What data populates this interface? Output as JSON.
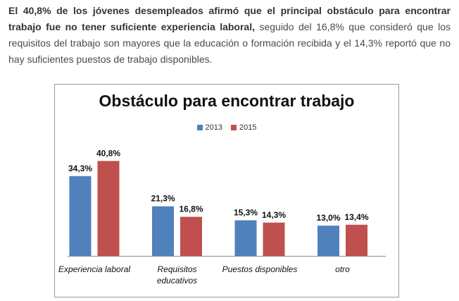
{
  "intro": {
    "bold": "El 40,8% de los jóvenes desempleados afirmó que el principal obstáculo para encontrar trabajo fue no tener suficiente experiencia laboral,",
    "rest": " seguido del 16,8% que consideró que los requisitos del trabajo son mayores que la educación o formación recibida y el 14,3% reportó que no hay suficientes puestos de trabajo disponibles."
  },
  "chart_data": {
    "type": "bar",
    "title": "Obstáculo para encontrar trabajo",
    "categories": [
      [
        "Experiencia laboral"
      ],
      [
        "Requisitos",
        "educativos"
      ],
      [
        "Puestos disponibles"
      ],
      [
        "otro"
      ]
    ],
    "series": [
      {
        "name": "2013",
        "color": "#4f81bd",
        "values": [
          34.3,
          21.3,
          15.3,
          13.0
        ],
        "labels": [
          "34,3%",
          "21,3%",
          "15,3%",
          "13,0%"
        ]
      },
      {
        "name": "2015",
        "color": "#c0504d",
        "values": [
          40.8,
          16.8,
          14.3,
          13.4
        ],
        "labels": [
          "40,8%",
          "16,8%",
          "14,3%",
          "13,4%"
        ]
      }
    ],
    "ylim": [
      0,
      50
    ],
    "legend_position": "top",
    "grid": false,
    "category_label_style": "italic"
  }
}
